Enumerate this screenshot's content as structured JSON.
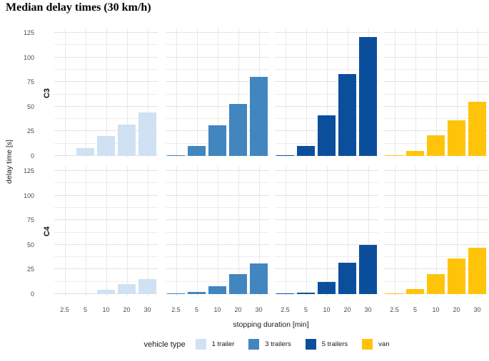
{
  "title": "Median delay times (30 km/h)",
  "chart_data": {
    "type": "bar",
    "title": "Median delay times (30 km/h)",
    "xlabel": "stopping duration [min]",
    "ylabel": "delay time [s]",
    "categories": [
      "2.5",
      "5",
      "10",
      "20",
      "30"
    ],
    "ylim": [
      0,
      125
    ],
    "yticks": [
      0,
      25,
      50,
      75,
      100,
      125
    ],
    "grid": true,
    "legend_position": "bottom",
    "legend_title": "vehicle type",
    "vehicle_types": [
      {
        "name": "1 trailer",
        "color": "#cfe1f2"
      },
      {
        "name": "3 trailers",
        "color": "#4186bf"
      },
      {
        "name": "5 trailers",
        "color": "#0b4f9c"
      },
      {
        "name": "van",
        "color": "#ffc40a"
      }
    ],
    "facets": [
      {
        "label": "C3",
        "series": [
          {
            "name": "1 trailer",
            "values": [
              1,
              8,
              20,
              32,
              44
            ]
          },
          {
            "name": "3 trailers",
            "values": [
              1,
              10,
              31,
              53,
              80
            ]
          },
          {
            "name": "5 trailers",
            "values": [
              1,
              10,
              41,
              83,
              121
            ]
          },
          {
            "name": "van",
            "values": [
              1,
              5,
              21,
              36,
              55
            ]
          }
        ]
      },
      {
        "label": "C4",
        "series": [
          {
            "name": "1 trailer",
            "values": [
              0.5,
              1,
              4,
              10,
              15
            ]
          },
          {
            "name": "3 trailers",
            "values": [
              0.5,
              2,
              8,
              20,
              31
            ]
          },
          {
            "name": "5 trailers",
            "values": [
              0.5,
              1.5,
              12,
              32,
              50
            ]
          },
          {
            "name": "van",
            "values": [
              1,
              5,
              20,
              36,
              47
            ]
          }
        ]
      }
    ]
  }
}
